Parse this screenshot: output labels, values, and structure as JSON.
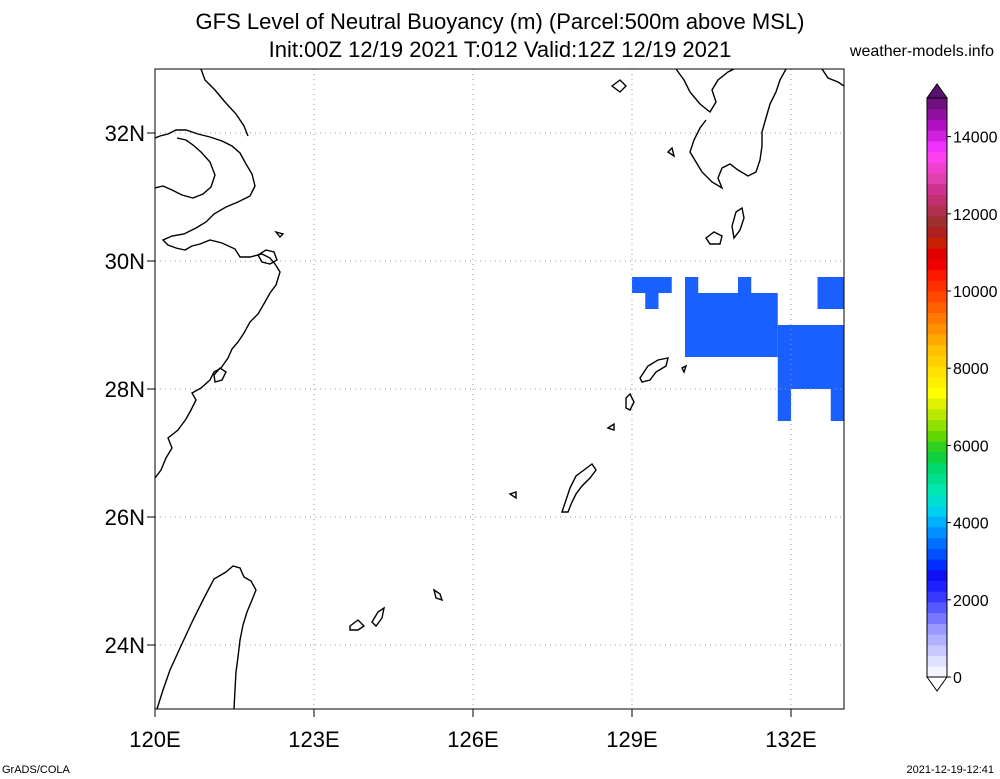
{
  "title_line1": "GFS Level of Neutral Buoyancy (m) (Parcel:500m above MSL)",
  "title_line2": "Init:00Z 12/19 2021 T:012 Valid:12Z 12/19 2021",
  "website": "weather-models.info",
  "footer_left": "GrADS/COLA",
  "footer_right": "2021-12-19-12:41",
  "map": {
    "lon_range": [
      120,
      133
    ],
    "lat_range": [
      23,
      33
    ],
    "lon_ticks": [
      {
        "value": 120,
        "label": "120E"
      },
      {
        "value": 123,
        "label": "123E"
      },
      {
        "value": 126,
        "label": "126E"
      },
      {
        "value": 129,
        "label": "129E"
      },
      {
        "value": 132,
        "label": "132E"
      }
    ],
    "lat_ticks": [
      {
        "value": 24,
        "label": "24N"
      },
      {
        "value": 26,
        "label": "26N"
      },
      {
        "value": 28,
        "label": "28N"
      },
      {
        "value": 30,
        "label": "30N"
      },
      {
        "value": 32,
        "label": "32N"
      }
    ],
    "grid": true,
    "field_color": "#1a60ff",
    "field_value_range_m": [
      2000,
      2500
    ],
    "field_cells": [
      [
        129.0,
        29.5,
        129.75,
        29.75
      ],
      [
        129.25,
        29.25,
        129.5,
        29.5
      ],
      [
        130.0,
        29.5,
        130.25,
        29.75
      ],
      [
        130.0,
        28.5,
        131.75,
        29.5
      ],
      [
        130.5,
        28.5,
        131.25,
        28.75
      ],
      [
        131.0,
        29.5,
        131.25,
        29.75
      ],
      [
        131.25,
        29.25,
        131.5,
        29.5
      ],
      [
        131.75,
        28.0,
        133.0,
        29.0
      ],
      [
        131.75,
        27.5,
        132.0,
        28.0
      ],
      [
        132.75,
        27.5,
        133.0,
        28.0
      ],
      [
        132.5,
        29.25,
        133.0,
        29.75
      ]
    ]
  },
  "colorbar": {
    "labels": [
      {
        "value": 0,
        "label": "0"
      },
      {
        "value": 2000,
        "label": "2000"
      },
      {
        "value": 4000,
        "label": "4000"
      },
      {
        "value": 6000,
        "label": "6000"
      },
      {
        "value": 8000,
        "label": "8000"
      },
      {
        "value": 10000,
        "label": "10000"
      },
      {
        "value": 12000,
        "label": "12000"
      },
      {
        "value": 14000,
        "label": "14000"
      }
    ],
    "colors": [
      "#f4f4ff",
      "#e0e0ff",
      "#c8c8ff",
      "#b0b0ff",
      "#9898ff",
      "#7878ff",
      "#5858ff",
      "#3838ff",
      "#2020ff",
      "#1010f0",
      "#0030ff",
      "#0050ff",
      "#0070ff",
      "#0090ff",
      "#00b0ff",
      "#00d0f0",
      "#00e0d0",
      "#00e8b0",
      "#00e090",
      "#00d870",
      "#10d040",
      "#30d020",
      "#60d800",
      "#90e000",
      "#b8e800",
      "#e0f000",
      "#ffff00",
      "#fff000",
      "#ffe000",
      "#ffd000",
      "#ffc000",
      "#ffa800",
      "#ff9000",
      "#ff7800",
      "#ff6000",
      "#ff4800",
      "#ff3000",
      "#ff1800",
      "#f00000",
      "#e00000",
      "#c82000",
      "#b02020",
      "#a03030",
      "#b03050",
      "#c03070",
      "#d03090",
      "#e040b0",
      "#f040d0",
      "#ff40f0",
      "#f030ff",
      "#d020e0",
      "#b010c0",
      "#9010a0",
      "#701080"
    ]
  }
}
